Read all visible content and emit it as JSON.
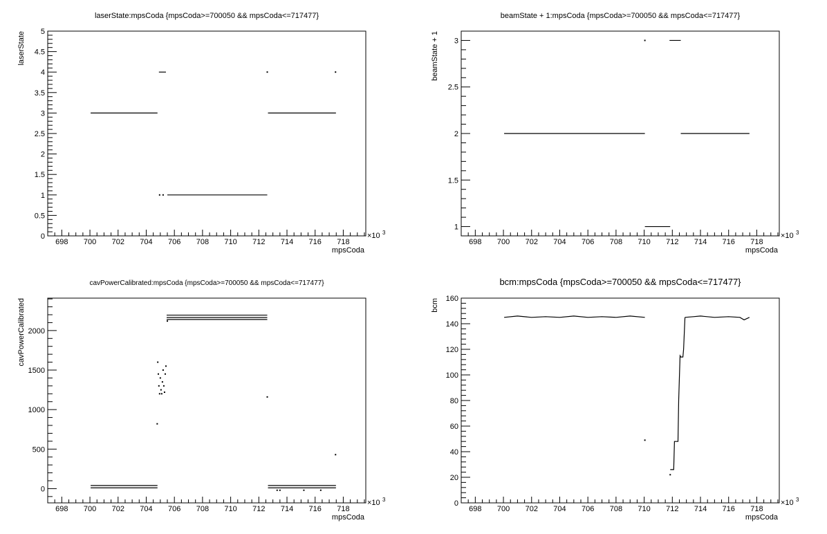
{
  "chart_data": [
    {
      "type": "scatter",
      "title": "laserState:mpsCoda {mpsCoda>=700050 && mpsCoda<=717477}",
      "xlabel": "mpsCoda",
      "ylabel": "laserState",
      "x_multiplier": "×10",
      "x_multiplier_exp": "3",
      "xlim": [
        697,
        719.6
      ],
      "ylim": [
        0,
        5
      ],
      "xticks": [
        698,
        700,
        702,
        704,
        706,
        708,
        710,
        712,
        714,
        716,
        718
      ],
      "yticks": [
        0,
        0.5,
        1,
        1.5,
        2,
        2.5,
        3,
        3.5,
        4,
        4.5,
        5
      ],
      "yminor": 0.1,
      "title_size": 11,
      "segments": [
        {
          "x": [
            700.05,
            704.8
          ],
          "y": 3
        },
        {
          "x": [
            704.9,
            705.4
          ],
          "y": 4
        },
        {
          "x": [
            705.5,
            712.6
          ],
          "y": 1
        },
        {
          "x": [
            712.65,
            717.48
          ],
          "y": 3
        }
      ],
      "points": [
        {
          "x": 704.95,
          "y": 1
        },
        {
          "x": 705.2,
          "y": 1
        },
        {
          "x": 712.6,
          "y": 4
        },
        {
          "x": 717.45,
          "y": 4
        }
      ]
    },
    {
      "type": "scatter",
      "title": "beamState + 1:mpsCoda {mpsCoda>=700050 && mpsCoda<=717477}",
      "xlabel": "mpsCoda",
      "ylabel": "beamState + 1",
      "x_multiplier": "×10",
      "x_multiplier_exp": "3",
      "xlim": [
        697,
        719.6
      ],
      "ylim": [
        0.9,
        3.1
      ],
      "xticks": [
        698,
        700,
        702,
        704,
        706,
        708,
        710,
        712,
        714,
        716,
        718
      ],
      "yticks": [
        1,
        1.5,
        2,
        2.5,
        3
      ],
      "yminor": 0.1,
      "title_size": 11,
      "segments": [
        {
          "x": [
            700.05,
            710.05
          ],
          "y": 2
        },
        {
          "x": [
            710.05,
            711.85
          ],
          "y": 1
        },
        {
          "x": [
            711.8,
            712.6
          ],
          "y": 3
        },
        {
          "x": [
            712.6,
            717.48
          ],
          "y": 2
        }
      ],
      "points": [
        {
          "x": 710.05,
          "y": 3
        }
      ]
    },
    {
      "type": "scatter",
      "title": "cavPowerCalibrated:mpsCoda {mpsCoda>=700050 && mpsCoda<=717477}",
      "xlabel": "mpsCoda",
      "ylabel": "cavPowerCalibrated",
      "x_multiplier": "×10",
      "x_multiplier_exp": "3",
      "xlim": [
        697,
        719.6
      ],
      "ylim": [
        -180,
        2410
      ],
      "xticks": [
        698,
        700,
        702,
        704,
        706,
        708,
        710,
        712,
        714,
        716,
        718
      ],
      "yticks": [
        0,
        500,
        1000,
        1500,
        2000
      ],
      "yminor": 100,
      "title_size": 10,
      "segments": [
        {
          "x": [
            700.05,
            704.8
          ],
          "y": 10
        },
        {
          "x": [
            700.05,
            704.8
          ],
          "y": 40
        },
        {
          "x": [
            705.45,
            712.6
          ],
          "y": 2140
        },
        {
          "x": [
            705.45,
            712.6
          ],
          "y": 2165
        },
        {
          "x": [
            705.45,
            712.6
          ],
          "y": 2195
        },
        {
          "x": [
            712.65,
            717.48
          ],
          "y": 10
        },
        {
          "x": [
            712.65,
            717.48
          ],
          "y": 40
        }
      ],
      "points": [
        {
          "x": 704.78,
          "y": 820
        },
        {
          "x": 704.82,
          "y": 1600
        },
        {
          "x": 704.86,
          "y": 1450
        },
        {
          "x": 704.9,
          "y": 1300
        },
        {
          "x": 704.95,
          "y": 1200
        },
        {
          "x": 705.0,
          "y": 1400
        },
        {
          "x": 705.05,
          "y": 1250
        },
        {
          "x": 705.1,
          "y": 1200
        },
        {
          "x": 705.15,
          "y": 1350
        },
        {
          "x": 705.2,
          "y": 1500
        },
        {
          "x": 705.25,
          "y": 1300
        },
        {
          "x": 705.3,
          "y": 1220
        },
        {
          "x": 705.35,
          "y": 1450
        },
        {
          "x": 705.4,
          "y": 1550
        },
        {
          "x": 705.5,
          "y": 2120
        },
        {
          "x": 712.6,
          "y": 1160
        },
        {
          "x": 713.3,
          "y": -20
        },
        {
          "x": 713.5,
          "y": -20
        },
        {
          "x": 715.2,
          "y": -20
        },
        {
          "x": 716.4,
          "y": -20
        },
        {
          "x": 717.45,
          "y": 430
        }
      ]
    },
    {
      "type": "scatter",
      "title": "bcm:mpsCoda {mpsCoda>=700050 && mpsCoda<=717477}",
      "xlabel": "mpsCoda",
      "ylabel": "bcm",
      "x_multiplier": "×10",
      "x_multiplier_exp": "3",
      "xlim": [
        697,
        719.6
      ],
      "ylim": [
        0,
        160
      ],
      "xticks": [
        698,
        700,
        702,
        704,
        706,
        708,
        710,
        712,
        714,
        716,
        718
      ],
      "yticks": [
        0,
        20,
        40,
        60,
        80,
        100,
        120,
        140,
        160
      ],
      "yminor": 4,
      "title_size": 13,
      "polylines": [
        {
          "x": [
            700.05,
            701,
            702,
            703,
            704,
            705,
            706,
            707,
            708,
            709,
            710.05
          ],
          "y": [
            145,
            146,
            145,
            145.5,
            145,
            146,
            145,
            145.5,
            145,
            146,
            145
          ]
        },
        {
          "x": [
            711.85,
            712.1,
            712.15,
            712.4,
            712.45,
            712.55,
            712.6,
            712.75,
            712.8,
            712.9
          ],
          "y": [
            26,
            26,
            48,
            48,
            80,
            115,
            114,
            114,
            120,
            145
          ]
        },
        {
          "x": [
            712.9,
            713.5,
            714,
            715,
            716,
            716.8,
            717.1,
            717.48
          ],
          "y": [
            145,
            145.5,
            146,
            145,
            145.5,
            145,
            143,
            145
          ]
        }
      ],
      "points": [
        {
          "x": 710.05,
          "y": 49
        },
        {
          "x": 711.85,
          "y": 22
        }
      ]
    }
  ]
}
